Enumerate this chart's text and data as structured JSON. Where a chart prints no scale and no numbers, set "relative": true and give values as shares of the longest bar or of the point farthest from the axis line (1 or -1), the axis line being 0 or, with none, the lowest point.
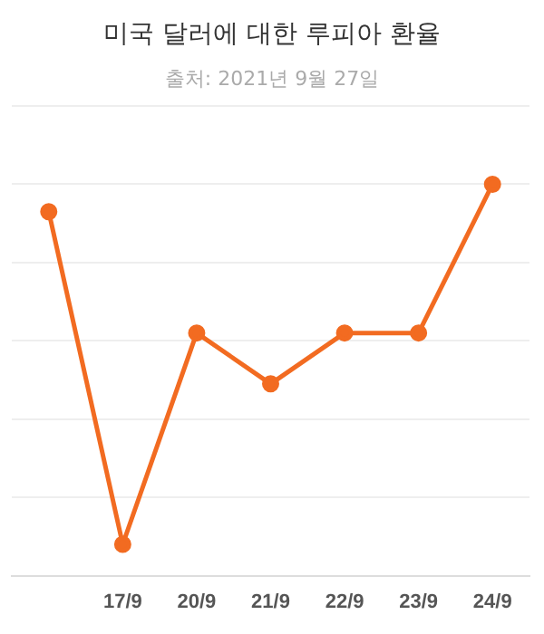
{
  "chart_data": {
    "type": "line",
    "title": "미국 달러에 대한 루피아 환율",
    "subtitle": "출처: 2021년 9월 27일",
    "categories": [
      null,
      "17/9",
      "20/9",
      "21/9",
      "22/9",
      "23/9",
      "24/9"
    ],
    "series": [
      {
        "color": "#f26b21",
        "values": [
          0.93,
          0.08,
          0.62,
          0.49,
          0.62,
          0.62,
          1
        ]
      }
    ],
    "relative": true,
    "grid": "y",
    "legend": false,
    "marker": "circle",
    "line_style": "solid"
  }
}
